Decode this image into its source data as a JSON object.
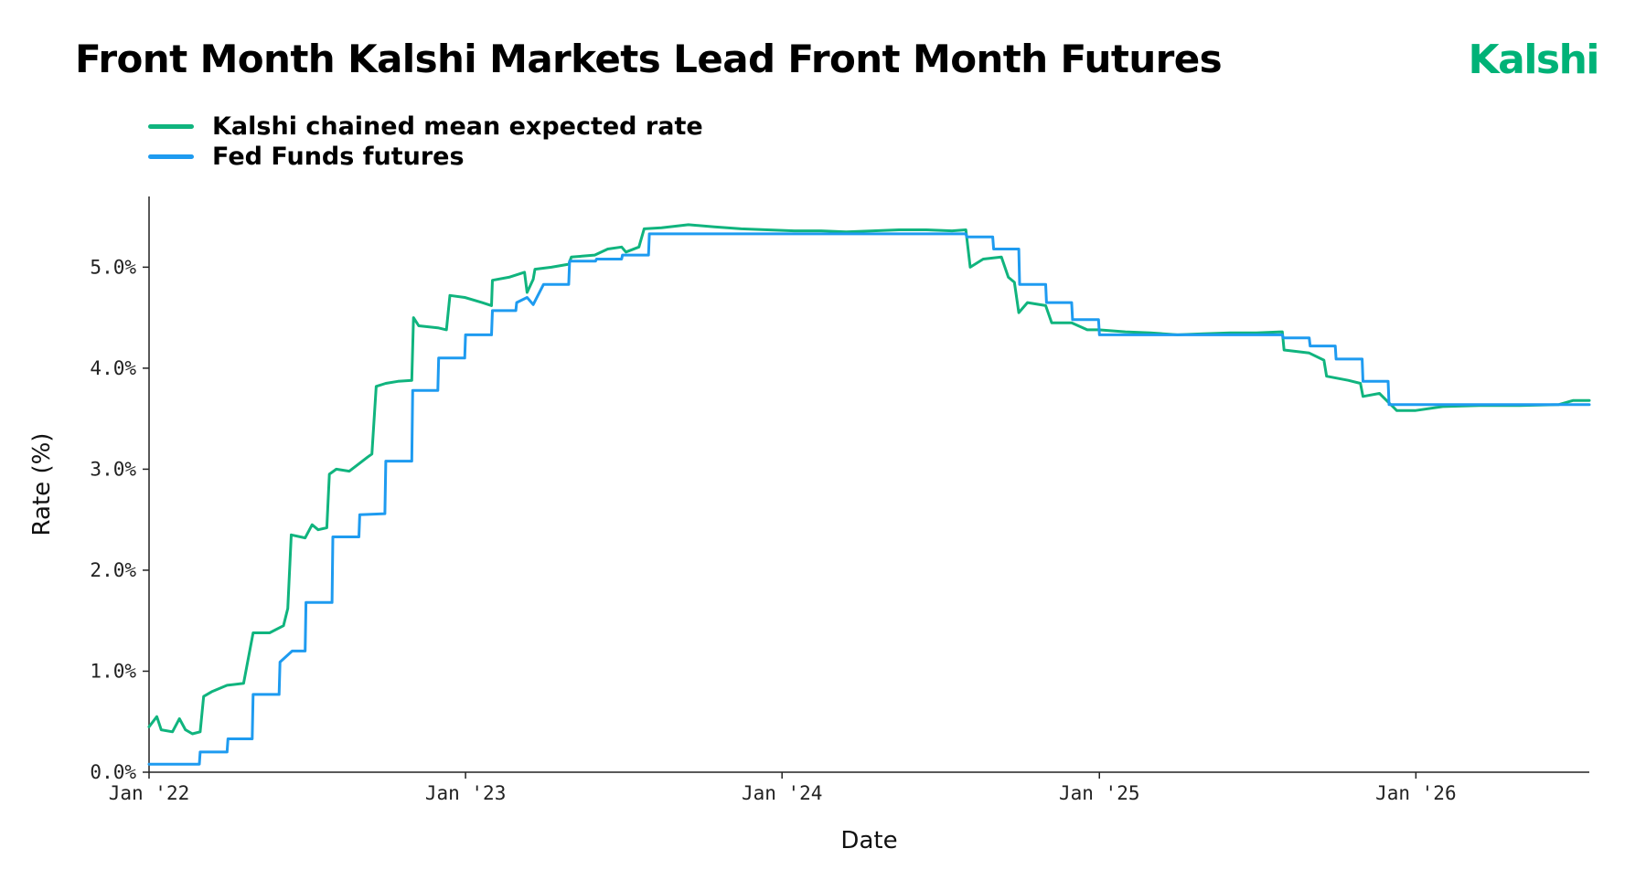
{
  "title": "Front Month Kalshi Markets Lead Front Month Futures",
  "brand": {
    "name": "Kalshi",
    "color": "#00B277"
  },
  "chart_data": {
    "type": "line",
    "xlabel": "Date",
    "ylabel": "Rate (%)",
    "ylim": [
      0,
      5.7
    ],
    "yticks": [
      0,
      1,
      2,
      3,
      4,
      5
    ],
    "ytick_labels": [
      "0.0%",
      "1.0%",
      "2.0%",
      "3.0%",
      "4.0%",
      "5.0%"
    ],
    "xlim": [
      "2022-01-01",
      "2026-07-20"
    ],
    "xticks": [
      "2022-01-01",
      "2023-01-01",
      "2024-01-01",
      "2025-01-01",
      "2026-01-01"
    ],
    "xtick_labels": [
      "Jan '22",
      "Jan '23",
      "Jan '24",
      "Jan '25",
      "Jan '26"
    ],
    "legend": "top-left",
    "grid": false,
    "series": [
      {
        "name": "Kalshi chained mean expected rate",
        "color": "#10B47E",
        "points": [
          [
            "2022-01-01",
            0.45
          ],
          [
            "2022-01-10",
            0.55
          ],
          [
            "2022-01-15",
            0.42
          ],
          [
            "2022-01-28",
            0.4
          ],
          [
            "2022-02-05",
            0.53
          ],
          [
            "2022-02-12",
            0.42
          ],
          [
            "2022-02-20",
            0.38
          ],
          [
            "2022-03-01",
            0.4
          ],
          [
            "2022-03-05",
            0.75
          ],
          [
            "2022-03-15",
            0.8
          ],
          [
            "2022-04-01",
            0.86
          ],
          [
            "2022-04-20",
            0.88
          ],
          [
            "2022-05-01",
            1.38
          ],
          [
            "2022-05-20",
            1.38
          ],
          [
            "2022-06-05",
            1.45
          ],
          [
            "2022-06-10",
            1.62
          ],
          [
            "2022-06-14",
            2.35
          ],
          [
            "2022-06-30",
            2.32
          ],
          [
            "2022-07-08",
            2.45
          ],
          [
            "2022-07-15",
            2.4
          ],
          [
            "2022-07-25",
            2.42
          ],
          [
            "2022-07-28",
            2.95
          ],
          [
            "2022-08-05",
            3.0
          ],
          [
            "2022-08-20",
            2.98
          ],
          [
            "2022-09-10",
            3.12
          ],
          [
            "2022-09-15",
            3.15
          ],
          [
            "2022-09-20",
            3.82
          ],
          [
            "2022-10-01",
            3.85
          ],
          [
            "2022-10-15",
            3.87
          ],
          [
            "2022-10-31",
            3.88
          ],
          [
            "2022-11-02",
            4.5
          ],
          [
            "2022-11-08",
            4.42
          ],
          [
            "2022-11-30",
            4.4
          ],
          [
            "2022-12-10",
            4.38
          ],
          [
            "2022-12-14",
            4.72
          ],
          [
            "2022-12-31",
            4.7
          ],
          [
            "2023-01-20",
            4.65
          ],
          [
            "2023-01-31",
            4.62
          ],
          [
            "2023-02-01",
            4.87
          ],
          [
            "2023-02-20",
            4.9
          ],
          [
            "2023-03-10",
            4.95
          ],
          [
            "2023-03-13",
            4.75
          ],
          [
            "2023-03-20",
            4.88
          ],
          [
            "2023-03-22",
            4.98
          ],
          [
            "2023-04-10",
            5.0
          ],
          [
            "2023-04-30",
            5.03
          ],
          [
            "2023-05-03",
            5.1
          ],
          [
            "2023-05-30",
            5.12
          ],
          [
            "2023-06-14",
            5.18
          ],
          [
            "2023-06-30",
            5.2
          ],
          [
            "2023-07-05",
            5.15
          ],
          [
            "2023-07-20",
            5.2
          ],
          [
            "2023-07-26",
            5.38
          ],
          [
            "2023-08-15",
            5.39
          ],
          [
            "2023-09-15",
            5.42
          ],
          [
            "2023-10-15",
            5.4
          ],
          [
            "2023-11-15",
            5.38
          ],
          [
            "2023-12-15",
            5.37
          ],
          [
            "2024-01-15",
            5.36
          ],
          [
            "2024-02-15",
            5.36
          ],
          [
            "2024-03-15",
            5.35
          ],
          [
            "2024-04-15",
            5.36
          ],
          [
            "2024-05-15",
            5.37
          ],
          [
            "2024-06-15",
            5.37
          ],
          [
            "2024-07-15",
            5.36
          ],
          [
            "2024-07-31",
            5.37
          ],
          [
            "2024-08-05",
            5.0
          ],
          [
            "2024-08-20",
            5.08
          ],
          [
            "2024-09-10",
            5.1
          ],
          [
            "2024-09-18",
            4.9
          ],
          [
            "2024-09-25",
            4.85
          ],
          [
            "2024-09-30",
            4.55
          ],
          [
            "2024-10-10",
            4.65
          ],
          [
            "2024-10-31",
            4.62
          ],
          [
            "2024-11-07",
            4.45
          ],
          [
            "2024-11-30",
            4.45
          ],
          [
            "2024-12-18",
            4.38
          ],
          [
            "2024-12-31",
            4.38
          ],
          [
            "2025-01-31",
            4.36
          ],
          [
            "2025-03-01",
            4.35
          ],
          [
            "2025-04-01",
            4.33
          ],
          [
            "2025-05-01",
            4.34
          ],
          [
            "2025-06-01",
            4.35
          ],
          [
            "2025-07-01",
            4.35
          ],
          [
            "2025-07-31",
            4.36
          ],
          [
            "2025-08-02",
            4.18
          ],
          [
            "2025-08-31",
            4.15
          ],
          [
            "2025-09-17",
            4.08
          ],
          [
            "2025-09-20",
            3.92
          ],
          [
            "2025-10-15",
            3.88
          ],
          [
            "2025-10-29",
            3.85
          ],
          [
            "2025-11-01",
            3.72
          ],
          [
            "2025-11-20",
            3.75
          ],
          [
            "2025-12-10",
            3.58
          ],
          [
            "2025-12-31",
            3.58
          ],
          [
            "2026-02-01",
            3.62
          ],
          [
            "2026-03-15",
            3.63
          ],
          [
            "2026-05-01",
            3.63
          ],
          [
            "2026-06-15",
            3.64
          ],
          [
            "2026-07-01",
            3.68
          ],
          [
            "2026-07-20",
            3.68
          ]
        ]
      },
      {
        "name": "Fed Funds futures",
        "color": "#1E9BF0",
        "points": [
          [
            "2022-01-01",
            0.08
          ],
          [
            "2022-02-28",
            0.08
          ],
          [
            "2022-03-01",
            0.2
          ],
          [
            "2022-04-01",
            0.2
          ],
          [
            "2022-04-02",
            0.33
          ],
          [
            "2022-04-30",
            0.33
          ],
          [
            "2022-05-01",
            0.77
          ],
          [
            "2022-05-31",
            0.77
          ],
          [
            "2022-06-01",
            1.09
          ],
          [
            "2022-06-15",
            1.2
          ],
          [
            "2022-06-30",
            1.2
          ],
          [
            "2022-07-01",
            1.68
          ],
          [
            "2022-07-31",
            1.68
          ],
          [
            "2022-08-01",
            2.33
          ],
          [
            "2022-08-31",
            2.33
          ],
          [
            "2022-09-01",
            2.55
          ],
          [
            "2022-09-30",
            2.56
          ],
          [
            "2022-10-01",
            3.08
          ],
          [
            "2022-10-31",
            3.08
          ],
          [
            "2022-11-01",
            3.78
          ],
          [
            "2022-11-30",
            3.78
          ],
          [
            "2022-12-01",
            4.1
          ],
          [
            "2022-12-31",
            4.1
          ],
          [
            "2023-01-01",
            4.33
          ],
          [
            "2023-01-31",
            4.33
          ],
          [
            "2023-02-01",
            4.57
          ],
          [
            "2023-02-28",
            4.57
          ],
          [
            "2023-03-01",
            4.65
          ],
          [
            "2023-03-13",
            4.7
          ],
          [
            "2023-03-20",
            4.63
          ],
          [
            "2023-04-01",
            4.83
          ],
          [
            "2023-04-30",
            4.83
          ],
          [
            "2023-05-01",
            5.06
          ],
          [
            "2023-05-31",
            5.06
          ],
          [
            "2023-06-01",
            5.08
          ],
          [
            "2023-06-30",
            5.08
          ],
          [
            "2023-07-01",
            5.12
          ],
          [
            "2023-07-31",
            5.12
          ],
          [
            "2023-08-01",
            5.33
          ],
          [
            "2024-07-31",
            5.33
          ],
          [
            "2024-08-01",
            5.3
          ],
          [
            "2024-08-31",
            5.3
          ],
          [
            "2024-09-01",
            5.18
          ],
          [
            "2024-09-30",
            5.18
          ],
          [
            "2024-10-01",
            4.83
          ],
          [
            "2024-10-31",
            4.83
          ],
          [
            "2024-11-01",
            4.65
          ],
          [
            "2024-11-30",
            4.65
          ],
          [
            "2024-12-01",
            4.48
          ],
          [
            "2024-12-31",
            4.48
          ],
          [
            "2025-01-01",
            4.33
          ],
          [
            "2025-07-31",
            4.33
          ],
          [
            "2025-08-01",
            4.3
          ],
          [
            "2025-08-31",
            4.3
          ],
          [
            "2025-09-01",
            4.22
          ],
          [
            "2025-09-30",
            4.22
          ],
          [
            "2025-10-01",
            4.09
          ],
          [
            "2025-10-31",
            4.09
          ],
          [
            "2025-11-01",
            3.87
          ],
          [
            "2025-11-30",
            3.87
          ],
          [
            "2025-12-01",
            3.64
          ],
          [
            "2026-07-20",
            3.64
          ]
        ]
      }
    ]
  }
}
